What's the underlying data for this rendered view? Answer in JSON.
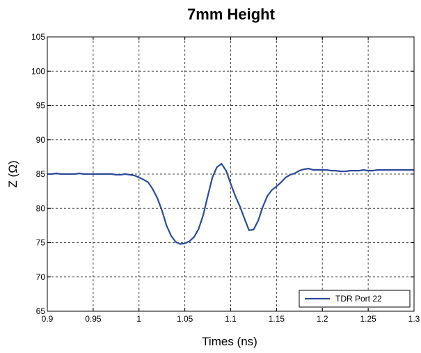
{
  "chart_data": {
    "type": "line",
    "title": "7mm Height",
    "xlabel": "Times (ns)",
    "ylabel": "Z (Ω)",
    "xlim": [
      0.9,
      1.3
    ],
    "ylim": [
      65,
      105
    ],
    "xticks": [
      0.9,
      0.95,
      1,
      1.05,
      1.1,
      1.15,
      1.2,
      1.25,
      1.3
    ],
    "xtick_labels": [
      "0.9",
      "0.95",
      "1",
      "1.05",
      "1.1",
      "1.15",
      "1.2",
      "1.25",
      "1.3"
    ],
    "yticks": [
      65,
      70,
      75,
      80,
      85,
      90,
      95,
      100,
      105
    ],
    "ytick_labels": [
      "65",
      "70",
      "75",
      "80",
      "85",
      "90",
      "95",
      "100",
      "105"
    ],
    "grid": true,
    "legend_position": "bottom-right",
    "colors": {
      "series": "#2e4a9a",
      "grid": "#444444",
      "axis": "#000000"
    },
    "series": [
      {
        "name": "TDR Port 22",
        "x": [
          0.9,
          0.905,
          0.91,
          0.915,
          0.92,
          0.925,
          0.93,
          0.935,
          0.94,
          0.945,
          0.95,
          0.955,
          0.96,
          0.965,
          0.97,
          0.975,
          0.98,
          0.985,
          0.99,
          0.995,
          1.0,
          1.005,
          1.01,
          1.015,
          1.02,
          1.025,
          1.03,
          1.035,
          1.04,
          1.045,
          1.05,
          1.055,
          1.06,
          1.065,
          1.07,
          1.075,
          1.08,
          1.085,
          1.09,
          1.095,
          1.1,
          1.105,
          1.11,
          1.115,
          1.12,
          1.125,
          1.13,
          1.135,
          1.14,
          1.145,
          1.15,
          1.155,
          1.16,
          1.165,
          1.17,
          1.175,
          1.18,
          1.185,
          1.19,
          1.195,
          1.2,
          1.205,
          1.21,
          1.215,
          1.22,
          1.225,
          1.23,
          1.235,
          1.24,
          1.245,
          1.25,
          1.255,
          1.26,
          1.265,
          1.27,
          1.275,
          1.28,
          1.285,
          1.29,
          1.295,
          1.3
        ],
        "values": [
          85.0,
          85.0,
          85.1,
          85.0,
          85.0,
          85.0,
          85.0,
          85.1,
          85.0,
          85.0,
          85.0,
          85.0,
          85.0,
          85.0,
          85.0,
          84.9,
          84.9,
          85.0,
          84.9,
          84.8,
          84.5,
          84.2,
          83.8,
          82.8,
          81.5,
          79.7,
          77.5,
          76.0,
          75.1,
          74.8,
          74.9,
          75.2,
          75.8,
          77.0,
          79.0,
          81.8,
          84.5,
          86.0,
          86.5,
          85.5,
          83.6,
          81.8,
          80.3,
          78.5,
          76.8,
          76.9,
          78.2,
          80.2,
          81.8,
          82.7,
          83.2,
          83.8,
          84.5,
          84.9,
          85.1,
          85.5,
          85.7,
          85.8,
          85.6,
          85.6,
          85.6,
          85.6,
          85.5,
          85.5,
          85.4,
          85.4,
          85.5,
          85.5,
          85.5,
          85.6,
          85.5,
          85.5,
          85.6,
          85.6,
          85.6,
          85.6,
          85.6,
          85.6,
          85.6,
          85.6,
          85.6
        ]
      }
    ]
  }
}
